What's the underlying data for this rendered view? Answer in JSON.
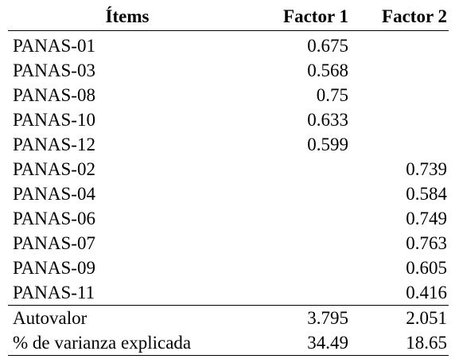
{
  "table": {
    "headers": [
      "Ítems",
      "Factor 1",
      "Factor 2"
    ],
    "rows": [
      {
        "item": "PANAS-01",
        "f1": "0.675",
        "f2": ""
      },
      {
        "item": "PANAS-03",
        "f1": "0.568",
        "f2": ""
      },
      {
        "item": "PANAS-08",
        "f1": "0.75",
        "f2": ""
      },
      {
        "item": "PANAS-10",
        "f1": "0.633",
        "f2": ""
      },
      {
        "item": "PANAS-12",
        "f1": "0.599",
        "f2": ""
      },
      {
        "item": "PANAS-02",
        "f1": "",
        "f2": "0.739"
      },
      {
        "item": "PANAS-04",
        "f1": "",
        "f2": "0.584"
      },
      {
        "item": "PANAS-06",
        "f1": "",
        "f2": "0.749"
      },
      {
        "item": "PANAS-07",
        "f1": "",
        "f2": "0.763"
      },
      {
        "item": "PANAS-09",
        "f1": "",
        "f2": "0.605"
      },
      {
        "item": "PANAS-11",
        "f1": "",
        "f2": "0.416"
      }
    ],
    "summary": [
      {
        "item": "Autovalor",
        "f1": "3.795",
        "f2": "2.051"
      },
      {
        "item": "% de varianza explicada",
        "f1": "34.49",
        "f2": "18.65"
      }
    ]
  }
}
